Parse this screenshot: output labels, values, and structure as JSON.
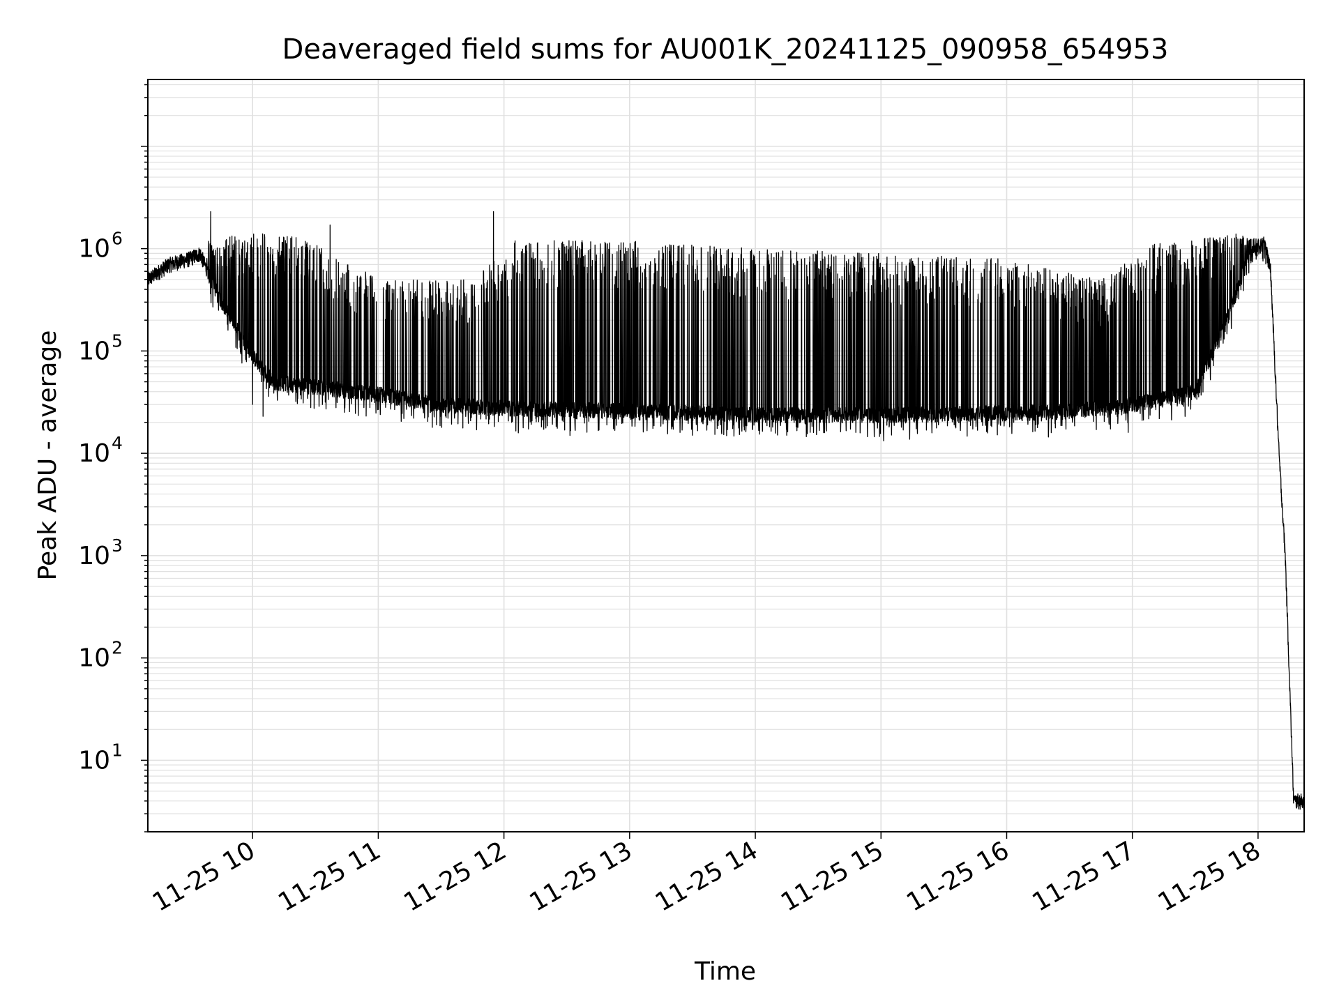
{
  "chart_data": {
    "type": "line",
    "title": "Deaveraged field sums for AU001K_20241125_090958_654953",
    "xlabel": "Time",
    "ylabel": "Peak ADU - average",
    "y_scale": "log",
    "ylim": [
      2,
      45000000
    ],
    "xlim": [
      "2024-11-25 09:10",
      "2024-11-25 18:22"
    ],
    "grid": true,
    "grid_minor": true,
    "legend": "none",
    "line_color": "#000000",
    "grid_color": "#e0e0e0",
    "x_ticks": [
      {
        "time": "2024-11-25 10:00",
        "label": "11-25 10"
      },
      {
        "time": "2024-11-25 11:00",
        "label": "11-25 11"
      },
      {
        "time": "2024-11-25 12:00",
        "label": "11-25 12"
      },
      {
        "time": "2024-11-25 13:00",
        "label": "11-25 13"
      },
      {
        "time": "2024-11-25 14:00",
        "label": "11-25 14"
      },
      {
        "time": "2024-11-25 15:00",
        "label": "11-25 15"
      },
      {
        "time": "2024-11-25 16:00",
        "label": "11-25 16"
      },
      {
        "time": "2024-11-25 17:00",
        "label": "11-25 17"
      },
      {
        "time": "2024-11-25 18:00",
        "label": "11-25 18"
      }
    ],
    "y_ticks": [
      {
        "value": 10,
        "base": "10",
        "exp": "1"
      },
      {
        "value": 100,
        "base": "10",
        "exp": "2"
      },
      {
        "value": 1000,
        "base": "10",
        "exp": "3"
      },
      {
        "value": 10000,
        "base": "10",
        "exp": "4"
      },
      {
        "value": 100000,
        "base": "10",
        "exp": "5"
      },
      {
        "value": 1000000,
        "base": "10",
        "exp": "6"
      }
    ],
    "series": [
      {
        "baseline": [
          {
            "time": "2024-11-25 09:10",
            "value": 500000
          },
          {
            "time": "2024-11-25 09:20",
            "value": 700000
          },
          {
            "time": "2024-11-25 09:30",
            "value": 800000
          },
          {
            "time": "2024-11-25 09:35",
            "value": 900000
          },
          {
            "time": "2024-11-25 09:40",
            "value": 500000
          },
          {
            "time": "2024-11-25 09:50",
            "value": 200000
          },
          {
            "time": "2024-11-25 10:00",
            "value": 90000
          },
          {
            "time": "2024-11-25 10:10",
            "value": 50000
          },
          {
            "time": "2024-11-25 10:30",
            "value": 45000
          },
          {
            "time": "2024-11-25 11:00",
            "value": 38000
          },
          {
            "time": "2024-11-25 11:30",
            "value": 30000
          },
          {
            "time": "2024-11-25 12:00",
            "value": 28000
          },
          {
            "time": "2024-11-25 13:00",
            "value": 26000
          },
          {
            "time": "2024-11-25 14:00",
            "value": 24000
          },
          {
            "time": "2024-11-25 15:00",
            "value": 24000
          },
          {
            "time": "2024-11-25 16:00",
            "value": 25000
          },
          {
            "time": "2024-11-25 16:30",
            "value": 26000
          },
          {
            "time": "2024-11-25 17:00",
            "value": 30000
          },
          {
            "time": "2024-11-25 17:30",
            "value": 40000
          },
          {
            "time": "2024-11-25 17:45",
            "value": 200000
          },
          {
            "time": "2024-11-25 17:55",
            "value": 800000
          },
          {
            "time": "2024-11-25 18:03",
            "value": 1200000
          },
          {
            "time": "2024-11-25 18:06",
            "value": 600000
          },
          {
            "time": "2024-11-25 18:10",
            "value": 10000
          },
          {
            "time": "2024-11-25 18:13",
            "value": 1000
          },
          {
            "time": "2024-11-25 18:17",
            "value": 4
          },
          {
            "time": "2024-11-25 18:22",
            "value": 4
          }
        ],
        "peak_envelope": [
          {
            "time": "2024-11-25 09:10",
            "value": 800000
          },
          {
            "time": "2024-11-25 09:40",
            "value": 1200000
          },
          {
            "time": "2024-11-25 10:00",
            "value": 1500000
          },
          {
            "time": "2024-11-25 10:30",
            "value": 1200000
          },
          {
            "time": "2024-11-25 11:00",
            "value": 500000
          },
          {
            "time": "2024-11-25 11:45",
            "value": 500000
          },
          {
            "time": "2024-11-25 12:05",
            "value": 1200000
          },
          {
            "time": "2024-11-25 13:00",
            "value": 1200000
          },
          {
            "time": "2024-11-25 14:00",
            "value": 1000000
          },
          {
            "time": "2024-11-25 15:00",
            "value": 900000
          },
          {
            "time": "2024-11-25 16:00",
            "value": 800000
          },
          {
            "time": "2024-11-25 16:45",
            "value": 500000
          },
          {
            "time": "2024-11-25 17:10",
            "value": 1100000
          },
          {
            "time": "2024-11-25 17:50",
            "value": 1400000
          },
          {
            "time": "2024-11-25 18:03",
            "value": 1200000
          }
        ],
        "spikes": [
          {
            "time": "2024-11-25 09:40",
            "value": 2300000
          },
          {
            "time": "2024-11-25 10:00",
            "value": 2300000
          },
          {
            "time": "2024-11-25 11:55",
            "value": 2300000
          },
          {
            "time": "2024-11-25 10:37",
            "value": 1700000
          }
        ],
        "dips": [
          {
            "time": "2024-11-25 10:00",
            "value": 30000
          },
          {
            "time": "2024-11-25 10:05",
            "value": 23000
          },
          {
            "time": "2024-11-25 13:30",
            "value": 15000
          },
          {
            "time": "2024-11-25 14:15",
            "value": 15000
          },
          {
            "time": "2024-11-25 14:48",
            "value": 16000
          },
          {
            "time": "2024-11-25 16:58",
            "value": 16000
          }
        ]
      }
    ]
  }
}
